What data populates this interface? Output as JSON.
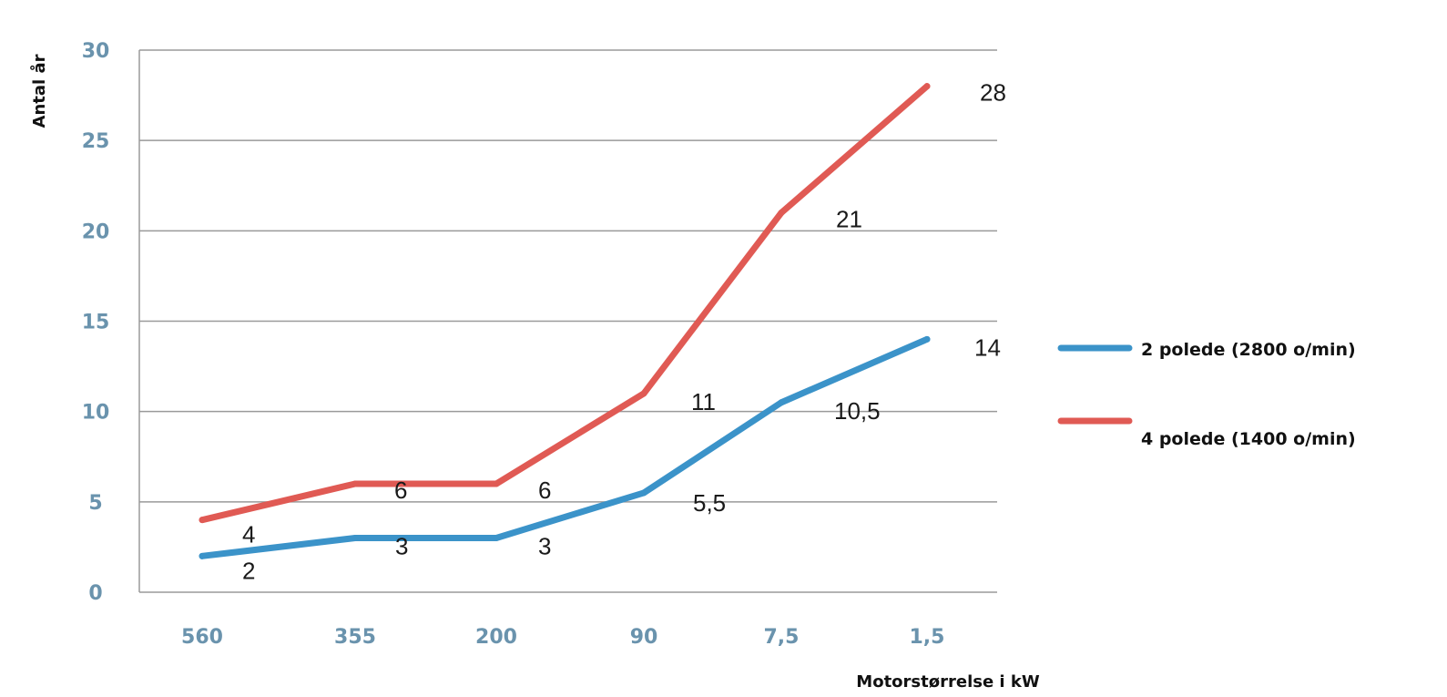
{
  "chart_data": {
    "type": "line",
    "categories": [
      "560",
      "355",
      "200",
      "90",
      "7,5",
      "1,5"
    ],
    "ylabel": "Antal år",
    "xlabel": "Motorstørrelse i kW",
    "ylim": [
      0,
      30
    ],
    "yticks": [
      "0",
      "5",
      "10",
      "15",
      "20",
      "25",
      "30"
    ],
    "grid": "horizontal",
    "legend": "right",
    "series": [
      {
        "name": "2 polede (2800 o/min)",
        "color": "#3b93c9",
        "values": [
          2,
          3,
          3,
          5.5,
          10.5,
          14
        ],
        "labels": [
          "2",
          "3",
          "3",
          "5,5",
          "10,5",
          "14"
        ]
      },
      {
        "name": "4 polede (1400 o/min)",
        "color": "#e05a54",
        "values": [
          4,
          6,
          6,
          11,
          21,
          28
        ],
        "labels": [
          "4",
          "6",
          "6",
          "11",
          "21",
          "28"
        ]
      }
    ]
  }
}
